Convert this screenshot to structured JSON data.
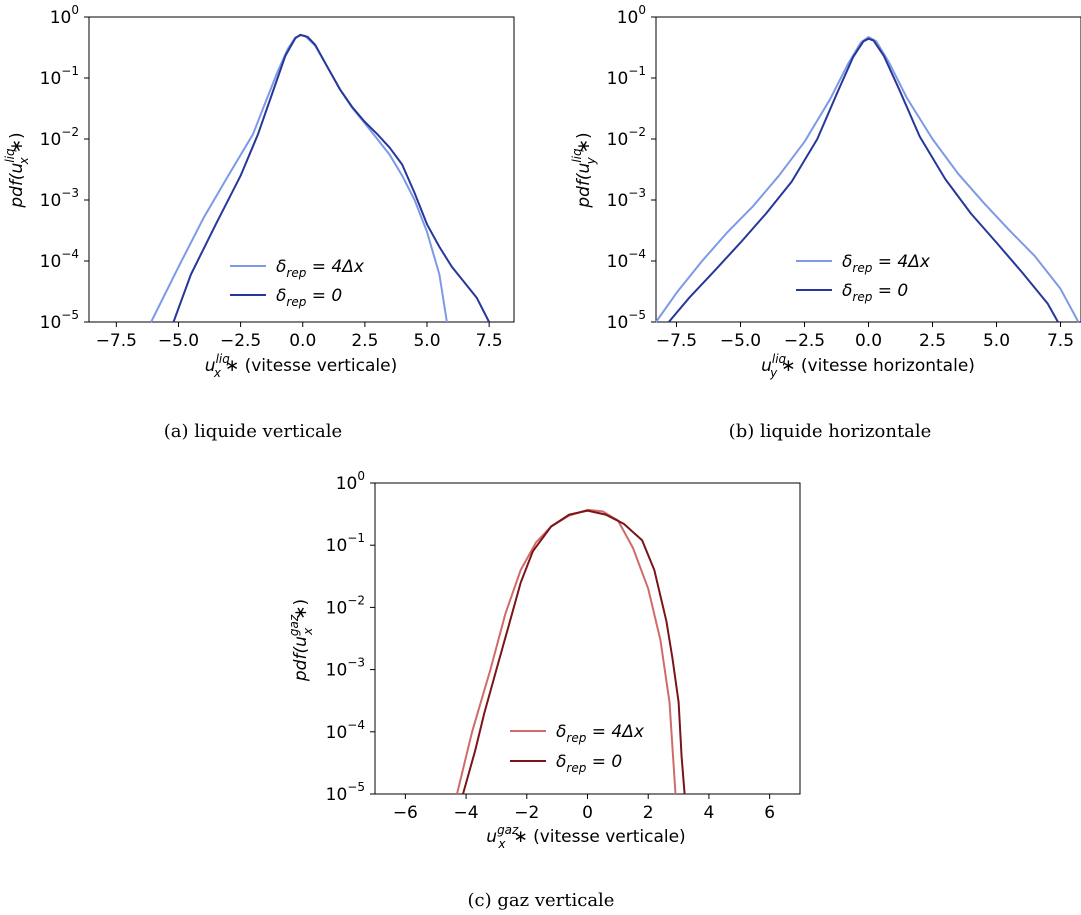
{
  "chart_data": [
    {
      "id": "a",
      "type": "line",
      "yscale": "log",
      "xlim": [
        -8.6,
        8.5
      ],
      "ylim": [
        1e-05,
        1
      ],
      "xticks": [
        "−7.5",
        "−5.0",
        "−2.5",
        "0.0",
        "2.5",
        "5.0",
        "7.5"
      ],
      "xtick_values": [
        -7.5,
        -5.0,
        -2.5,
        0.0,
        2.5,
        5.0,
        7.5
      ],
      "yticks": [
        "10",
        "10",
        "10",
        "10",
        "10",
        "10"
      ],
      "ytick_exponents": [
        "0",
        "−1",
        "−2",
        "−3",
        "−4",
        "−5"
      ],
      "ytick_values": [
        1,
        0.1,
        0.01,
        0.001,
        0.0001,
        1e-05
      ],
      "xlabel": {
        "base": "u",
        "sub": "x",
        "sup": "liq",
        "tail": "∗  (vitesse verticale)"
      },
      "ylabel": {
        "pre": "pdf(u",
        "sub": "x",
        "sup": "liq",
        "tail": "∗)"
      },
      "legend_position": "lower-center",
      "caption": "(a) liquide verticale",
      "series": [
        {
          "name_base": "δ",
          "name_sub": "rep",
          "name_tail": " = 4Δx",
          "color": "#7d9ae6",
          "points": [
            [
              -6.1,
              1e-05
            ],
            [
              -5.0,
              8e-05
            ],
            [
              -4.0,
              0.0005
            ],
            [
              -3.0,
              0.0025
            ],
            [
              -2.0,
              0.012
            ],
            [
              -1.5,
              0.04
            ],
            [
              -1.0,
              0.13
            ],
            [
              -0.6,
              0.3
            ],
            [
              -0.3,
              0.46
            ],
            [
              -0.1,
              0.5
            ],
            [
              0.1,
              0.49
            ],
            [
              0.5,
              0.34
            ],
            [
              1.0,
              0.15
            ],
            [
              1.5,
              0.065
            ],
            [
              2.0,
              0.032
            ],
            [
              2.5,
              0.018
            ],
            [
              3.0,
              0.01
            ],
            [
              3.5,
              0.0055
            ],
            [
              4.0,
              0.0025
            ],
            [
              4.5,
              0.001
            ],
            [
              5.0,
              0.0003
            ],
            [
              5.5,
              6e-05
            ],
            [
              5.8,
              1e-05
            ]
          ]
        },
        {
          "name_base": "δ",
          "name_sub": "rep",
          "name_tail": " = 0",
          "color": "#26379a",
          "points": [
            [
              -5.2,
              1e-05
            ],
            [
              -4.5,
              6e-05
            ],
            [
              -3.5,
              0.0004
            ],
            [
              -2.5,
              0.0025
            ],
            [
              -1.8,
              0.012
            ],
            [
              -1.2,
              0.06
            ],
            [
              -0.7,
              0.23
            ],
            [
              -0.3,
              0.45
            ],
            [
              -0.1,
              0.51
            ],
            [
              0.2,
              0.47
            ],
            [
              0.5,
              0.35
            ],
            [
              1.0,
              0.15
            ],
            [
              1.5,
              0.065
            ],
            [
              2.0,
              0.033
            ],
            [
              2.5,
              0.019
            ],
            [
              3.0,
              0.012
            ],
            [
              3.5,
              0.0072
            ],
            [
              4.0,
              0.0038
            ],
            [
              4.5,
              0.0013
            ],
            [
              5.0,
              0.0004
            ],
            [
              5.5,
              0.00017
            ],
            [
              6.0,
              8e-05
            ],
            [
              6.5,
              4.5e-05
            ],
            [
              7.0,
              2.5e-05
            ],
            [
              7.5,
              1e-05
            ]
          ]
        }
      ]
    },
    {
      "id": "b",
      "type": "line",
      "yscale": "log",
      "xlim": [
        -8.3,
        8.3
      ],
      "ylim": [
        1e-05,
        1
      ],
      "xticks": [
        "−7.5",
        "−5.0",
        "−2.5",
        "0.0",
        "2.5",
        "5.0",
        "7.5"
      ],
      "xtick_values": [
        -7.5,
        -5.0,
        -2.5,
        0.0,
        2.5,
        5.0,
        7.5
      ],
      "yticks": [
        "10",
        "10",
        "10",
        "10",
        "10",
        "10"
      ],
      "ytick_exponents": [
        "0",
        "−1",
        "−2",
        "−3",
        "−4",
        "−5"
      ],
      "ytick_values": [
        1,
        0.1,
        0.01,
        0.001,
        0.0001,
        1e-05
      ],
      "xlabel": {
        "base": "u",
        "sub": "y",
        "sup": "liq",
        "tail": "∗  (vitesse horizontale)"
      },
      "ylabel": {
        "pre": "pdf(u",
        "sub": "y",
        "sup": "liq",
        "tail": "∗)"
      },
      "legend_position": "lower-center",
      "caption": "(b) liquide horizontale",
      "series": [
        {
          "name_base": "δ",
          "name_sub": "rep",
          "name_tail": " = 4Δx",
          "color": "#7d9ae6",
          "points": [
            [
              -8.3,
              1e-05
            ],
            [
              -7.5,
              3e-05
            ],
            [
              -6.5,
              0.0001
            ],
            [
              -5.5,
              0.0003
            ],
            [
              -4.5,
              0.0008
            ],
            [
              -3.5,
              0.0025
            ],
            [
              -2.5,
              0.009
            ],
            [
              -1.5,
              0.045
            ],
            [
              -0.8,
              0.17
            ],
            [
              -0.3,
              0.38
            ],
            [
              0.0,
              0.47
            ],
            [
              0.3,
              0.4
            ],
            [
              0.8,
              0.18
            ],
            [
              1.5,
              0.047
            ],
            [
              2.5,
              0.01
            ],
            [
              3.5,
              0.0027
            ],
            [
              4.5,
              0.0009
            ],
            [
              5.5,
              0.00032
            ],
            [
              6.5,
              0.00012
            ],
            [
              7.5,
              3.5e-05
            ],
            [
              8.2,
              1e-05
            ]
          ]
        },
        {
          "name_base": "δ",
          "name_sub": "rep",
          "name_tail": " = 0",
          "color": "#26379a",
          "points": [
            [
              -7.8,
              1e-05
            ],
            [
              -7.0,
              2.5e-05
            ],
            [
              -6.0,
              7e-05
            ],
            [
              -5.0,
              0.0002
            ],
            [
              -4.0,
              0.0006
            ],
            [
              -3.0,
              0.002
            ],
            [
              -2.0,
              0.01
            ],
            [
              -1.2,
              0.06
            ],
            [
              -0.6,
              0.22
            ],
            [
              -0.2,
              0.4
            ],
            [
              0.0,
              0.44
            ],
            [
              0.2,
              0.41
            ],
            [
              0.6,
              0.23
            ],
            [
              1.2,
              0.065
            ],
            [
              2.0,
              0.011
            ],
            [
              3.0,
              0.0022
            ],
            [
              4.0,
              0.0006
            ],
            [
              5.0,
              0.0002
            ],
            [
              6.0,
              6.5e-05
            ],
            [
              7.0,
              2e-05
            ],
            [
              7.4,
              1e-05
            ]
          ]
        }
      ]
    },
    {
      "id": "c",
      "type": "line",
      "yscale": "log",
      "xlim": [
        -7.0,
        7.0
      ],
      "ylim": [
        1e-05,
        1
      ],
      "xticks": [
        "−6",
        "−4",
        "−2",
        "0",
        "2",
        "4",
        "6"
      ],
      "xtick_values": [
        -6,
        -4,
        -2,
        0,
        2,
        4,
        6
      ],
      "yticks": [
        "10",
        "10",
        "10",
        "10",
        "10",
        "10"
      ],
      "ytick_exponents": [
        "0",
        "−1",
        "−2",
        "−3",
        "−4",
        "−5"
      ],
      "ytick_values": [
        1,
        0.1,
        0.01,
        0.001,
        0.0001,
        1e-05
      ],
      "xlabel": {
        "base": "u",
        "sub": "x",
        "sup": "gaz",
        "tail": "∗  (vitesse verticale)"
      },
      "ylabel": {
        "pre": "pdf(u",
        "sub": "x",
        "sup": "gaz",
        "tail": "∗)"
      },
      "legend_position": "lower-center",
      "caption": "(c) gaz verticale",
      "series": [
        {
          "name_base": "δ",
          "name_sub": "rep",
          "name_tail": " = 4Δx",
          "color": "#cf6b6b",
          "points": [
            [
              -4.3,
              1e-05
            ],
            [
              -3.8,
              0.0001
            ],
            [
              -3.2,
              0.001
            ],
            [
              -2.7,
              0.008
            ],
            [
              -2.2,
              0.04
            ],
            [
              -1.7,
              0.11
            ],
            [
              -1.2,
              0.2
            ],
            [
              -0.6,
              0.3
            ],
            [
              0.0,
              0.37
            ],
            [
              0.5,
              0.35
            ],
            [
              1.0,
              0.25
            ],
            [
              1.5,
              0.09
            ],
            [
              2.0,
              0.02
            ],
            [
              2.4,
              0.003
            ],
            [
              2.7,
              0.0003
            ],
            [
              2.9,
              1e-05
            ]
          ]
        },
        {
          "name_base": "δ",
          "name_sub": "rep",
          "name_tail": " = 0",
          "color": "#7a1418",
          "points": [
            [
              -4.1,
              1e-05
            ],
            [
              -3.7,
              5e-05
            ],
            [
              -3.4,
              0.0002
            ],
            [
              -3.0,
              0.001
            ],
            [
              -2.6,
              0.005
            ],
            [
              -2.2,
              0.025
            ],
            [
              -1.8,
              0.08
            ],
            [
              -1.2,
              0.2
            ],
            [
              -0.6,
              0.31
            ],
            [
              0.0,
              0.36
            ],
            [
              0.6,
              0.31
            ],
            [
              1.2,
              0.22
            ],
            [
              1.8,
              0.12
            ],
            [
              2.2,
              0.04
            ],
            [
              2.6,
              0.006
            ],
            [
              2.8,
              0.0015
            ],
            [
              3.0,
              0.0003
            ],
            [
              3.1,
              4e-05
            ],
            [
              3.2,
              1e-05
            ]
          ]
        }
      ]
    }
  ]
}
